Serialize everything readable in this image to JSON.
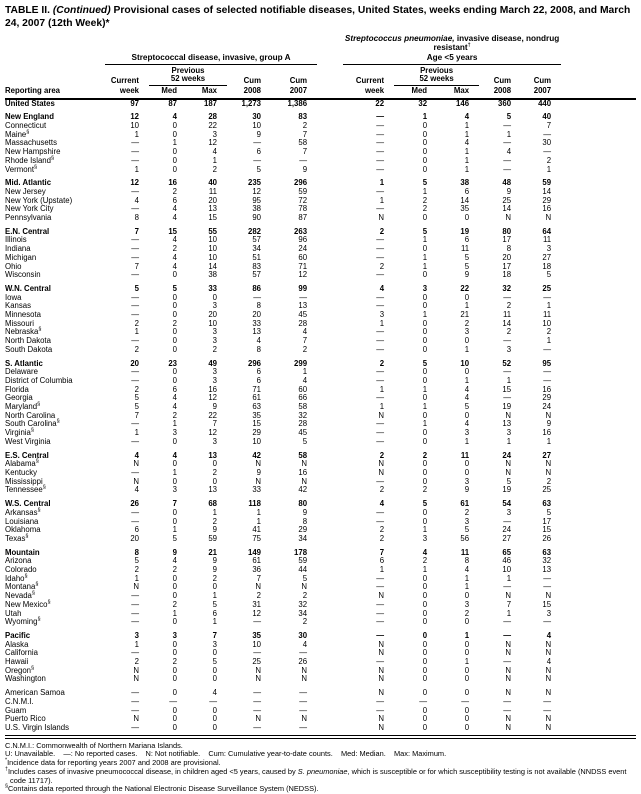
{
  "title": {
    "part1": "TABLE II.",
    "part2": "(Continued)",
    "part3": "Provisional cases of selected notifiable diseases, United States, weeks ending March 22, 2008, and March 24, 2007 (12th Week)*"
  },
  "header": {
    "reporting_area": "Reporting area",
    "group_a": {
      "title": "Streptococcal disease, invasive, group A"
    },
    "pneumo": {
      "title_italic": "Streptococcus pneumoniae,",
      "title_rest": " invasive disease, nondrug resistant",
      "dagger": "†",
      "subtitle": "Age <5 years"
    },
    "columns": {
      "current": "Current",
      "week": "week",
      "previous": "Previous",
      "weeks52": "52 weeks",
      "med": "Med",
      "max": "Max",
      "cum": "Cum",
      "y2008": "2008",
      "y2007": "2007"
    }
  },
  "rows": [
    {
      "area": "United States",
      "sym": "",
      "bold": true,
      "gap": false,
      "v": [
        "97",
        "87",
        "187",
        "1,273",
        "1,386",
        "22",
        "32",
        "146",
        "360",
        "440"
      ]
    },
    {
      "area": "New England",
      "sym": "",
      "bold": true,
      "gap": true,
      "v": [
        "12",
        "4",
        "28",
        "30",
        "83",
        "—",
        "1",
        "4",
        "5",
        "40"
      ]
    },
    {
      "area": "Connecticut",
      "sym": "",
      "bold": false,
      "gap": false,
      "v": [
        "10",
        "0",
        "22",
        "10",
        "2",
        "—",
        "0",
        "1",
        "—",
        "7"
      ]
    },
    {
      "area": "Maine",
      "sym": "§",
      "bold": false,
      "gap": false,
      "v": [
        "1",
        "0",
        "3",
        "9",
        "7",
        "—",
        "0",
        "1",
        "1",
        "—"
      ]
    },
    {
      "area": "Massachusetts",
      "sym": "",
      "bold": false,
      "gap": false,
      "v": [
        "—",
        "1",
        "12",
        "—",
        "58",
        "—",
        "0",
        "4",
        "—",
        "30"
      ]
    },
    {
      "area": "New Hampshire",
      "sym": "",
      "bold": false,
      "gap": false,
      "v": [
        "—",
        "0",
        "4",
        "6",
        "7",
        "—",
        "0",
        "1",
        "4",
        "—"
      ]
    },
    {
      "area": "Rhode Island",
      "sym": "§",
      "bold": false,
      "gap": false,
      "v": [
        "—",
        "0",
        "1",
        "—",
        "—",
        "—",
        "0",
        "1",
        "—",
        "2"
      ]
    },
    {
      "area": "Vermont",
      "sym": "§",
      "bold": false,
      "gap": false,
      "v": [
        "1",
        "0",
        "2",
        "5",
        "9",
        "—",
        "0",
        "1",
        "—",
        "1"
      ]
    },
    {
      "area": "Mid. Atlantic",
      "sym": "",
      "bold": true,
      "gap": true,
      "v": [
        "12",
        "16",
        "40",
        "235",
        "296",
        "1",
        "5",
        "38",
        "48",
        "59"
      ]
    },
    {
      "area": "New Jersey",
      "sym": "",
      "bold": false,
      "gap": false,
      "v": [
        "—",
        "2",
        "11",
        "12",
        "59",
        "—",
        "1",
        "6",
        "9",
        "14"
      ]
    },
    {
      "area": "New York (Upstate)",
      "sym": "",
      "bold": false,
      "gap": false,
      "v": [
        "4",
        "6",
        "20",
        "95",
        "72",
        "1",
        "2",
        "14",
        "25",
        "29"
      ]
    },
    {
      "area": "New York City",
      "sym": "",
      "bold": false,
      "gap": false,
      "v": [
        "—",
        "4",
        "13",
        "38",
        "78",
        "—",
        "2",
        "35",
        "14",
        "16"
      ]
    },
    {
      "area": "Pennsylvania",
      "sym": "",
      "bold": false,
      "gap": false,
      "v": [
        "8",
        "4",
        "15",
        "90",
        "87",
        "N",
        "0",
        "0",
        "N",
        "N"
      ]
    },
    {
      "area": "E.N. Central",
      "sym": "",
      "bold": true,
      "gap": true,
      "v": [
        "7",
        "15",
        "55",
        "282",
        "263",
        "2",
        "5",
        "19",
        "80",
        "64"
      ]
    },
    {
      "area": "Illinois",
      "sym": "",
      "bold": false,
      "gap": false,
      "v": [
        "—",
        "4",
        "10",
        "57",
        "96",
        "—",
        "1",
        "6",
        "17",
        "11"
      ]
    },
    {
      "area": "Indiana",
      "sym": "",
      "bold": false,
      "gap": false,
      "v": [
        "—",
        "2",
        "10",
        "34",
        "24",
        "—",
        "0",
        "11",
        "8",
        "3"
      ]
    },
    {
      "area": "Michigan",
      "sym": "",
      "bold": false,
      "gap": false,
      "v": [
        "—",
        "4",
        "10",
        "51",
        "60",
        "—",
        "1",
        "5",
        "20",
        "27"
      ]
    },
    {
      "area": "Ohio",
      "sym": "",
      "bold": false,
      "gap": false,
      "v": [
        "7",
        "4",
        "14",
        "83",
        "71",
        "2",
        "1",
        "5",
        "17",
        "18"
      ]
    },
    {
      "area": "Wisconsin",
      "sym": "",
      "bold": false,
      "gap": false,
      "v": [
        "—",
        "0",
        "38",
        "57",
        "12",
        "—",
        "0",
        "9",
        "18",
        "5"
      ]
    },
    {
      "area": "W.N. Central",
      "sym": "",
      "bold": true,
      "gap": true,
      "v": [
        "5",
        "5",
        "33",
        "86",
        "99",
        "4",
        "3",
        "22",
        "32",
        "25"
      ]
    },
    {
      "area": "Iowa",
      "sym": "",
      "bold": false,
      "gap": false,
      "v": [
        "—",
        "0",
        "0",
        "—",
        "—",
        "—",
        "0",
        "0",
        "—",
        "—"
      ]
    },
    {
      "area": "Kansas",
      "sym": "",
      "bold": false,
      "gap": false,
      "v": [
        "—",
        "0",
        "3",
        "8",
        "13",
        "—",
        "0",
        "1",
        "2",
        "1"
      ]
    },
    {
      "area": "Minnesota",
      "sym": "",
      "bold": false,
      "gap": false,
      "v": [
        "—",
        "0",
        "20",
        "20",
        "45",
        "3",
        "1",
        "21",
        "11",
        "11"
      ]
    },
    {
      "area": "Missouri",
      "sym": "",
      "bold": false,
      "gap": false,
      "v": [
        "2",
        "2",
        "10",
        "33",
        "28",
        "1",
        "0",
        "2",
        "14",
        "10"
      ]
    },
    {
      "area": "Nebraska",
      "sym": "§",
      "bold": false,
      "gap": false,
      "v": [
        "1",
        "0",
        "3",
        "13",
        "4",
        "—",
        "0",
        "3",
        "2",
        "2"
      ]
    },
    {
      "area": "North Dakota",
      "sym": "",
      "bold": false,
      "gap": false,
      "v": [
        "—",
        "0",
        "3",
        "4",
        "7",
        "—",
        "0",
        "0",
        "—",
        "1"
      ]
    },
    {
      "area": "South Dakota",
      "sym": "",
      "bold": false,
      "gap": false,
      "v": [
        "2",
        "0",
        "2",
        "8",
        "2",
        "—",
        "0",
        "1",
        "3",
        "—"
      ]
    },
    {
      "area": "S. Atlantic",
      "sym": "",
      "bold": true,
      "gap": true,
      "v": [
        "20",
        "23",
        "49",
        "296",
        "299",
        "2",
        "5",
        "10",
        "52",
        "95"
      ]
    },
    {
      "area": "Delaware",
      "sym": "",
      "bold": false,
      "gap": false,
      "v": [
        "—",
        "0",
        "3",
        "6",
        "1",
        "—",
        "0",
        "0",
        "—",
        "—"
      ]
    },
    {
      "area": "District of Columbia",
      "sym": "",
      "bold": false,
      "gap": false,
      "v": [
        "—",
        "0",
        "3",
        "6",
        "4",
        "—",
        "0",
        "1",
        "1",
        "—"
      ]
    },
    {
      "area": "Florida",
      "sym": "",
      "bold": false,
      "gap": false,
      "v": [
        "2",
        "6",
        "16",
        "71",
        "60",
        "1",
        "1",
        "4",
        "15",
        "16"
      ]
    },
    {
      "area": "Georgia",
      "sym": "",
      "bold": false,
      "gap": false,
      "v": [
        "5",
        "4",
        "12",
        "61",
        "66",
        "—",
        "0",
        "4",
        "—",
        "29"
      ]
    },
    {
      "area": "Maryland",
      "sym": "§",
      "bold": false,
      "gap": false,
      "v": [
        "5",
        "4",
        "9",
        "63",
        "58",
        "1",
        "1",
        "5",
        "19",
        "24"
      ]
    },
    {
      "area": "North Carolina",
      "sym": "",
      "bold": false,
      "gap": false,
      "v": [
        "7",
        "2",
        "22",
        "35",
        "32",
        "N",
        "0",
        "0",
        "N",
        "N"
      ]
    },
    {
      "area": "South Carolina",
      "sym": "§",
      "bold": false,
      "gap": false,
      "v": [
        "—",
        "1",
        "7",
        "15",
        "28",
        "—",
        "1",
        "4",
        "13",
        "9"
      ]
    },
    {
      "area": "Virginia",
      "sym": "§",
      "bold": false,
      "gap": false,
      "v": [
        "1",
        "3",
        "12",
        "29",
        "45",
        "—",
        "0",
        "3",
        "3",
        "16"
      ]
    },
    {
      "area": "West Virginia",
      "sym": "",
      "bold": false,
      "gap": false,
      "v": [
        "—",
        "0",
        "3",
        "10",
        "5",
        "—",
        "0",
        "1",
        "1",
        "1"
      ]
    },
    {
      "area": "E.S. Central",
      "sym": "",
      "bold": true,
      "gap": true,
      "v": [
        "4",
        "4",
        "13",
        "42",
        "58",
        "2",
        "2",
        "11",
        "24",
        "27"
      ]
    },
    {
      "area": "Alabama",
      "sym": "§",
      "bold": false,
      "gap": false,
      "v": [
        "N",
        "0",
        "0",
        "N",
        "N",
        "N",
        "0",
        "0",
        "N",
        "N"
      ]
    },
    {
      "area": "Kentucky",
      "sym": "",
      "bold": false,
      "gap": false,
      "v": [
        "—",
        "1",
        "2",
        "9",
        "16",
        "N",
        "0",
        "0",
        "N",
        "N"
      ]
    },
    {
      "area": "Mississippi",
      "sym": "",
      "bold": false,
      "gap": false,
      "v": [
        "N",
        "0",
        "0",
        "N",
        "N",
        "—",
        "0",
        "3",
        "5",
        "2"
      ]
    },
    {
      "area": "Tennessee",
      "sym": "§",
      "bold": false,
      "gap": false,
      "v": [
        "4",
        "3",
        "13",
        "33",
        "42",
        "2",
        "2",
        "9",
        "19",
        "25"
      ]
    },
    {
      "area": "W.S. Central",
      "sym": "",
      "bold": true,
      "gap": true,
      "v": [
        "26",
        "7",
        "68",
        "118",
        "80",
        "4",
        "5",
        "61",
        "54",
        "63"
      ]
    },
    {
      "area": "Arkansas",
      "sym": "§",
      "bold": false,
      "gap": false,
      "v": [
        "—",
        "0",
        "1",
        "1",
        "9",
        "—",
        "0",
        "2",
        "3",
        "5"
      ]
    },
    {
      "area": "Louisiana",
      "sym": "",
      "bold": false,
      "gap": false,
      "v": [
        "—",
        "0",
        "2",
        "1",
        "8",
        "—",
        "0",
        "3",
        "—",
        "17"
      ]
    },
    {
      "area": "Oklahoma",
      "sym": "",
      "bold": false,
      "gap": false,
      "v": [
        "6",
        "1",
        "9",
        "41",
        "29",
        "2",
        "1",
        "5",
        "24",
        "15"
      ]
    },
    {
      "area": "Texas",
      "sym": "§",
      "bold": false,
      "gap": false,
      "v": [
        "20",
        "5",
        "59",
        "75",
        "34",
        "2",
        "3",
        "56",
        "27",
        "26"
      ]
    },
    {
      "area": "Mountain",
      "sym": "",
      "bold": true,
      "gap": true,
      "v": [
        "8",
        "9",
        "21",
        "149",
        "178",
        "7",
        "4",
        "11",
        "65",
        "63"
      ]
    },
    {
      "area": "Arizona",
      "sym": "",
      "bold": false,
      "gap": false,
      "v": [
        "5",
        "4",
        "9",
        "61",
        "59",
        "6",
        "2",
        "8",
        "46",
        "32"
      ]
    },
    {
      "area": "Colorado",
      "sym": "",
      "bold": false,
      "gap": false,
      "v": [
        "2",
        "2",
        "9",
        "36",
        "44",
        "1",
        "1",
        "4",
        "10",
        "13"
      ]
    },
    {
      "area": "Idaho",
      "sym": "§",
      "bold": false,
      "gap": false,
      "v": [
        "1",
        "0",
        "2",
        "7",
        "5",
        "—",
        "0",
        "1",
        "1",
        "—"
      ]
    },
    {
      "area": "Montana",
      "sym": "§",
      "bold": false,
      "gap": false,
      "v": [
        "N",
        "0",
        "0",
        "N",
        "N",
        "—",
        "0",
        "1",
        "—",
        "—"
      ]
    },
    {
      "area": "Nevada",
      "sym": "§",
      "bold": false,
      "gap": false,
      "v": [
        "—",
        "0",
        "1",
        "2",
        "2",
        "N",
        "0",
        "0",
        "N",
        "N"
      ]
    },
    {
      "area": "New Mexico",
      "sym": "§",
      "bold": false,
      "gap": false,
      "v": [
        "—",
        "2",
        "5",
        "31",
        "32",
        "—",
        "0",
        "3",
        "7",
        "15"
      ]
    },
    {
      "area": "Utah",
      "sym": "",
      "bold": false,
      "gap": false,
      "v": [
        "—",
        "1",
        "6",
        "12",
        "34",
        "—",
        "0",
        "2",
        "1",
        "3"
      ]
    },
    {
      "area": "Wyoming",
      "sym": "§",
      "bold": false,
      "gap": false,
      "v": [
        "—",
        "0",
        "1",
        "—",
        "2",
        "—",
        "0",
        "0",
        "—",
        "—"
      ]
    },
    {
      "area": "Pacific",
      "sym": "",
      "bold": true,
      "gap": true,
      "v": [
        "3",
        "3",
        "7",
        "35",
        "30",
        "—",
        "0",
        "1",
        "—",
        "4"
      ]
    },
    {
      "area": "Alaska",
      "sym": "",
      "bold": false,
      "gap": false,
      "v": [
        "1",
        "0",
        "3",
        "10",
        "4",
        "N",
        "0",
        "0",
        "N",
        "N"
      ]
    },
    {
      "area": "California",
      "sym": "",
      "bold": false,
      "gap": false,
      "v": [
        "—",
        "0",
        "0",
        "—",
        "—",
        "N",
        "0",
        "0",
        "N",
        "N"
      ]
    },
    {
      "area": "Hawaii",
      "sym": "",
      "bold": false,
      "gap": false,
      "v": [
        "2",
        "2",
        "5",
        "25",
        "26",
        "—",
        "0",
        "1",
        "—",
        "4"
      ]
    },
    {
      "area": "Oregon",
      "sym": "§",
      "bold": false,
      "gap": false,
      "v": [
        "N",
        "0",
        "0",
        "N",
        "N",
        "N",
        "0",
        "0",
        "N",
        "N"
      ]
    },
    {
      "area": "Washington",
      "sym": "",
      "bold": false,
      "gap": false,
      "v": [
        "N",
        "0",
        "0",
        "N",
        "N",
        "N",
        "0",
        "0",
        "N",
        "N"
      ]
    },
    {
      "area": "American Samoa",
      "sym": "",
      "bold": false,
      "gap": true,
      "v": [
        "—",
        "0",
        "4",
        "—",
        "—",
        "N",
        "0",
        "0",
        "N",
        "N"
      ]
    },
    {
      "area": "C.N.M.I.",
      "sym": "",
      "bold": false,
      "gap": false,
      "v": [
        "—",
        "—",
        "—",
        "—",
        "—",
        "—",
        "—",
        "—",
        "—",
        "—"
      ]
    },
    {
      "area": "Guam",
      "sym": "",
      "bold": false,
      "gap": false,
      "v": [
        "—",
        "0",
        "0",
        "—",
        "—",
        "—",
        "0",
        "0",
        "—",
        "—"
      ]
    },
    {
      "area": "Puerto Rico",
      "sym": "",
      "bold": false,
      "gap": false,
      "v": [
        "N",
        "0",
        "0",
        "N",
        "N",
        "N",
        "0",
        "0",
        "N",
        "N"
      ]
    },
    {
      "area": "U.S. Virgin Islands",
      "sym": "",
      "bold": false,
      "gap": false,
      "v": [
        "—",
        "0",
        "0",
        "—",
        "—",
        "N",
        "0",
        "0",
        "N",
        "N"
      ]
    }
  ],
  "footnotes": [
    {
      "sym": "",
      "pre": "C.N.M.I.: Commonwealth of Northern Mariana Islands.",
      "italic": "",
      "post": ""
    },
    {
      "sym": "",
      "pre": "U: Unavailable.    —: No reported cases.    N: Not notifiable.    Cum: Cumulative year-to-date counts.    Med: Median.    Max: Maximum.",
      "italic": "",
      "post": ""
    },
    {
      "sym": "*",
      "pre": "Incidence data for reporting years 2007 and 2008 are provisional.",
      "italic": "",
      "post": ""
    },
    {
      "sym": "†",
      "pre": "Includes cases of invasive pneumococcal disease, in children aged <5 years, caused by ",
      "italic": "S. pneumoniae",
      "post": ", which is susceptible or for which susceptibility testing is not available (NNDSS event code 11717)."
    },
    {
      "sym": "§",
      "pre": "Contains data reported through the National Electronic Disease Surveillance System (NEDSS).",
      "italic": "",
      "post": ""
    }
  ]
}
